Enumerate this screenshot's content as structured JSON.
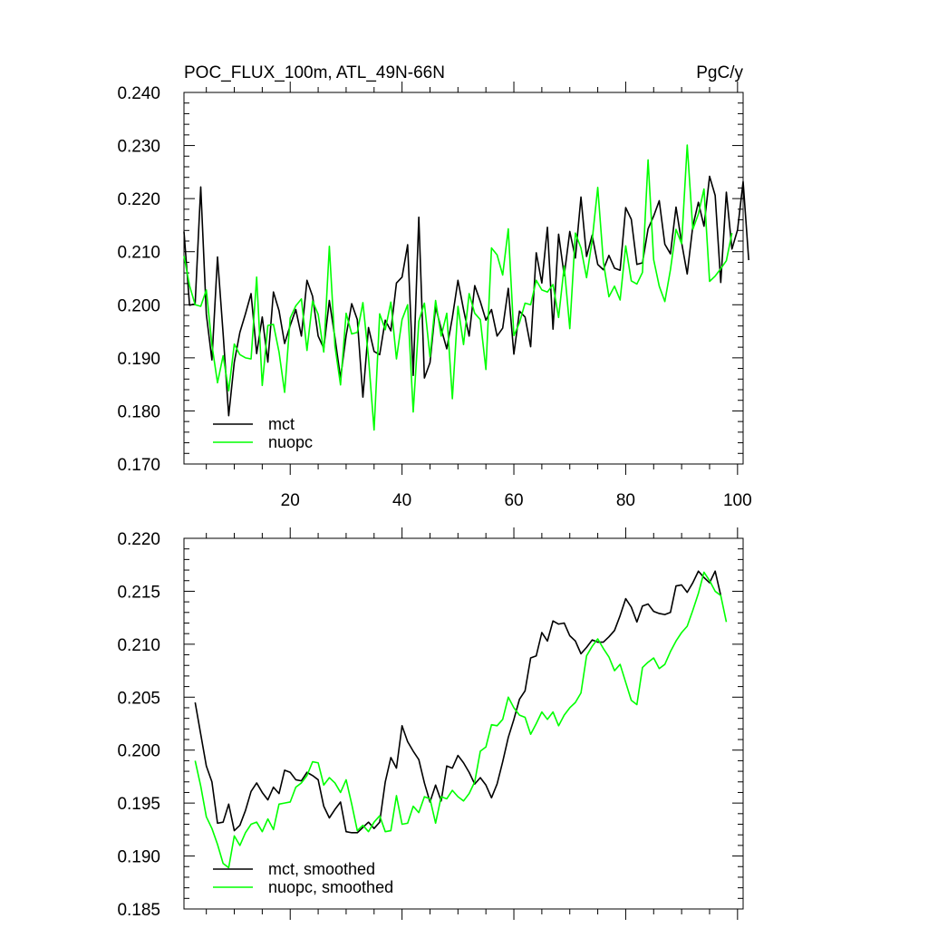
{
  "chart_data": [
    {
      "type": "line",
      "title": "POC_FLUX_100m, ATL_49N-66N",
      "units": "PgC/y",
      "xlim": [
        1,
        101
      ],
      "ylim": [
        0.17,
        0.24
      ],
      "xticks": [
        20,
        40,
        60,
        80,
        100
      ],
      "xtick_labels": [
        "20",
        "40",
        "60",
        "80",
        "100"
      ],
      "yticks": [
        0.17,
        0.18,
        0.19,
        0.2,
        0.21,
        0.22,
        0.23,
        0.24
      ],
      "ytick_labels": [
        "0.170",
        "0.180",
        "0.190",
        "0.200",
        "0.210",
        "0.220",
        "0.230",
        "0.240"
      ],
      "legend_position": "bottom-left",
      "series": [
        {
          "name": "mct",
          "color": "#000000",
          "x_start": 1,
          "values": [
            0.2138,
            0.1999,
            0.2002,
            0.2222,
            0.1982,
            0.1896,
            0.209,
            0.1946,
            0.1791,
            0.1892,
            0.1948,
            0.1983,
            0.2021,
            0.1908,
            0.1977,
            0.1892,
            0.2024,
            0.1989,
            0.1927,
            0.1961,
            0.1991,
            0.1941,
            0.2046,
            0.2016,
            0.1941,
            0.1918,
            0.2008,
            0.1938,
            0.1862,
            0.1942,
            0.2002,
            0.1972,
            0.1826,
            0.1957,
            0.1912,
            0.1906,
            0.1971,
            0.1951,
            0.2041,
            0.2052,
            0.2113,
            0.1867,
            0.2165,
            0.1862,
            0.1891,
            0.1996,
            0.1955,
            0.1917,
            0.1976,
            0.2046,
            0.1991,
            0.1941,
            0.2036,
            0.2006,
            0.1971,
            0.1991,
            0.1941,
            0.1956,
            0.2031,
            0.1907,
            0.1988,
            0.1977,
            0.1921,
            0.2098,
            0.2041,
            0.2146,
            0.1954,
            0.2133,
            0.2055,
            0.2138,
            0.2088,
            0.2203,
            0.2091,
            0.2131,
            0.2076,
            0.2066,
            0.2093,
            0.2069,
            0.2065,
            0.2183,
            0.2161,
            0.2076,
            0.2079,
            0.2143,
            0.2167,
            0.2196,
            0.2114,
            0.2096,
            0.2184,
            0.2117,
            0.2058,
            0.2148,
            0.2193,
            0.2148,
            0.2242,
            0.2206,
            0.2042,
            0.2212,
            0.2105,
            0.2141,
            0.2232,
            0.2084
          ]
        },
        {
          "name": "nuopc",
          "color": "#00ff00",
          "x_start": 1,
          "values": [
            0.2092,
            0.2036,
            0.2,
            0.1997,
            0.2028,
            0.1924,
            0.1853,
            0.1904,
            0.1838,
            0.1926,
            0.1906,
            0.19,
            0.1898,
            0.2052,
            0.1848,
            0.1961,
            0.1963,
            0.1911,
            0.1835,
            0.1975,
            0.1998,
            0.2011,
            0.1914,
            0.2007,
            0.1982,
            0.1911,
            0.211,
            0.1922,
            0.1849,
            0.1984,
            0.1945,
            0.1948,
            0.2004,
            0.1901,
            0.1764,
            0.1983,
            0.1953,
            0.2005,
            0.1898,
            0.1972,
            0.2,
            0.1798,
            0.1969,
            0.2003,
            0.1902,
            0.2008,
            0.1941,
            0.1984,
            0.1823,
            0.1997,
            0.1925,
            0.2021,
            0.1984,
            0.1972,
            0.1878,
            0.2107,
            0.2094,
            0.2056,
            0.2143,
            0.1942,
            0.1966,
            0.2003,
            0.2,
            0.2046,
            0.2028,
            0.2024,
            0.2038,
            0.1976,
            0.2073,
            0.1955,
            0.2135,
            0.2107,
            0.2051,
            0.2121,
            0.2221,
            0.2081,
            0.2015,
            0.2035,
            0.2009,
            0.2111,
            0.2045,
            0.2039,
            0.2061,
            0.2273,
            0.2085,
            0.2035,
            0.2006,
            0.2066,
            0.2142,
            0.2115,
            0.2301,
            0.2142,
            0.2171,
            0.2218,
            0.2044,
            0.2054,
            0.2068,
            0.2083,
            0.2135
          ]
        }
      ]
    },
    {
      "type": "line",
      "xlim": [
        1,
        101
      ],
      "ylim": [
        0.185,
        0.22
      ],
      "xticks": [
        20,
        40,
        60,
        80,
        100
      ],
      "yticks": [
        0.185,
        0.19,
        0.195,
        0.2,
        0.205,
        0.21,
        0.215,
        0.22
      ],
      "ytick_labels": [
        "0.185",
        "0.190",
        "0.195",
        "0.200",
        "0.205",
        "0.210",
        "0.215",
        "0.220"
      ],
      "legend_position": "bottom-left",
      "series": [
        {
          "name": "mct, smoothed",
          "color": "#000000",
          "x_start": 3,
          "values": [
            0.2045,
            0.2015,
            0.1985,
            0.197,
            0.1931,
            0.1932,
            0.1949,
            0.1924,
            0.1929,
            0.1943,
            0.1961,
            0.1969,
            0.196,
            0.1953,
            0.1965,
            0.1959,
            0.1981,
            0.1979,
            0.1972,
            0.1971,
            0.1979,
            0.1976,
            0.1972,
            0.1947,
            0.1936,
            0.1944,
            0.1951,
            0.1923,
            0.1922,
            0.1922,
            0.1927,
            0.1932,
            0.1926,
            0.1932,
            0.197,
            0.1993,
            0.1983,
            0.2023,
            0.2008,
            0.1999,
            0.1991,
            0.1969,
            0.1951,
            0.1967,
            0.1952,
            0.1985,
            0.1983,
            0.1995,
            0.1988,
            0.1979,
            0.1968,
            0.1974,
            0.1967,
            0.1955,
            0.1968,
            0.1989,
            0.2012,
            0.2029,
            0.2048,
            0.2056,
            0.2087,
            0.2089,
            0.2111,
            0.2103,
            0.2122,
            0.2119,
            0.212,
            0.2108,
            0.2103,
            0.2091,
            0.2097,
            0.2104,
            0.2102,
            0.2102,
            0.2107,
            0.2113,
            0.2127,
            0.2143,
            0.2135,
            0.2121,
            0.2136,
            0.2138,
            0.2131,
            0.2129,
            0.2128,
            0.213,
            0.2155,
            0.2156,
            0.2149,
            0.2158,
            0.2169,
            0.2163,
            0.2158,
            0.2169,
            0.2146
          ]
        },
        {
          "name": "nuopc, smoothed",
          "color": "#00ff00",
          "x_start": 3,
          "values": [
            0.199,
            0.1966,
            0.1937,
            0.1926,
            0.1911,
            0.1893,
            0.1889,
            0.1919,
            0.191,
            0.1922,
            0.193,
            0.1932,
            0.1923,
            0.1935,
            0.1925,
            0.1949,
            0.195,
            0.1951,
            0.1965,
            0.1969,
            0.1976,
            0.1989,
            0.1988,
            0.1967,
            0.1974,
            0.1969,
            0.196,
            0.1972,
            0.1949,
            0.1924,
            0.1929,
            0.1923,
            0.1932,
            0.1938,
            0.1923,
            0.1924,
            0.1957,
            0.193,
            0.1931,
            0.1947,
            0.1941,
            0.1956,
            0.1954,
            0.1931,
            0.1956,
            0.1954,
            0.1962,
            0.1956,
            0.1952,
            0.1959,
            0.197,
            0.1999,
            0.2003,
            0.2024,
            0.2023,
            0.2029,
            0.205,
            0.204,
            0.2033,
            0.2031,
            0.2015,
            0.2025,
            0.2036,
            0.2029,
            0.2036,
            0.2023,
            0.2033,
            0.204,
            0.2045,
            0.2054,
            0.2089,
            0.2098,
            0.2105,
            0.2096,
            0.2088,
            0.2075,
            0.2081,
            0.2064,
            0.2047,
            0.2043,
            0.2078,
            0.2083,
            0.2087,
            0.2077,
            0.2081,
            0.2093,
            0.2103,
            0.2111,
            0.2117,
            0.2132,
            0.2148,
            0.2168,
            0.216,
            0.215,
            0.2146,
            0.2121
          ]
        }
      ]
    }
  ]
}
